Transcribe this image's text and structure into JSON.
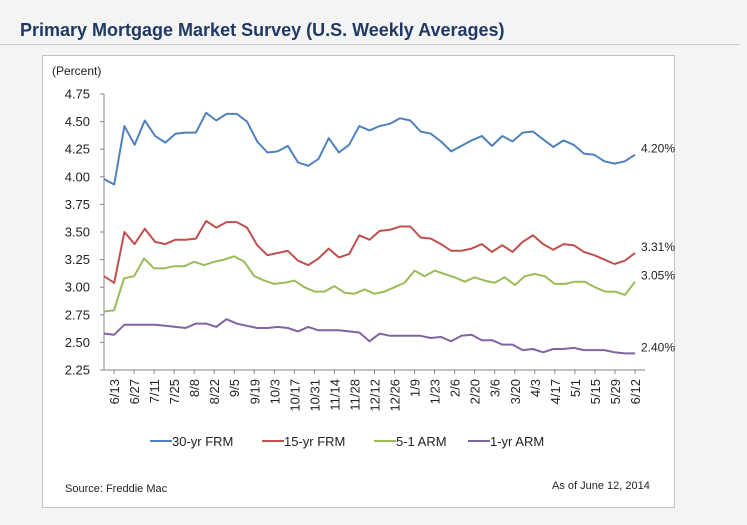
{
  "header": {
    "title": "Primary Mortgage Market Survey (U.S. Weekly Averages)"
  },
  "footer": {
    "source": "Source: Freddie Mac",
    "as_of": "As of June 12, 2014"
  },
  "colors": {
    "title": "#1f3864",
    "series": [
      "#4f81bd",
      "#c0504d",
      "#9bbb59",
      "#8064a2"
    ]
  },
  "chart_data": {
    "type": "line",
    "ylabel": "(Percent)",
    "ylim": [
      2.25,
      4.75
    ],
    "yticks": [
      "4.75",
      "4.50",
      "4.25",
      "4.00",
      "3.75",
      "3.50",
      "3.25",
      "3.00",
      "2.75",
      "2.50",
      "2.25"
    ],
    "legend_position": "bottom",
    "x_tick_labels": [
      "6/13",
      "6/27",
      "7/11",
      "7/25",
      "8/8",
      "8/22",
      "9/5",
      "9/19",
      "10/3",
      "10/17",
      "10/31",
      "11/14",
      "11/28",
      "12/12",
      "12/26",
      "1/9",
      "1/23",
      "2/6",
      "2/20",
      "3/6",
      "3/20",
      "4/3",
      "4/17",
      "5/1",
      "5/15",
      "5/29",
      "6/12"
    ],
    "series": [
      {
        "name": "30-yr FRM",
        "end_label": "4.20%",
        "values": [
          3.98,
          3.93,
          4.46,
          4.29,
          4.51,
          4.37,
          4.31,
          4.39,
          4.4,
          4.4,
          4.58,
          4.51,
          4.57,
          4.57,
          4.5,
          4.32,
          4.22,
          4.23,
          4.28,
          4.13,
          4.1,
          4.16,
          4.35,
          4.22,
          4.29,
          4.46,
          4.42,
          4.46,
          4.48,
          4.53,
          4.51,
          4.41,
          4.39,
          4.32,
          4.23,
          4.28,
          4.33,
          4.37,
          4.28,
          4.37,
          4.32,
          4.4,
          4.41,
          4.34,
          4.27,
          4.33,
          4.29,
          4.21,
          4.2,
          4.14,
          4.12,
          4.14,
          4.2
        ]
      },
      {
        "name": "15-yr FRM",
        "end_label": "3.31%",
        "values": [
          3.1,
          3.04,
          3.5,
          3.39,
          3.53,
          3.41,
          3.39,
          3.43,
          3.43,
          3.44,
          3.6,
          3.54,
          3.59,
          3.59,
          3.54,
          3.38,
          3.29,
          3.31,
          3.33,
          3.24,
          3.2,
          3.26,
          3.35,
          3.27,
          3.3,
          3.47,
          3.43,
          3.51,
          3.52,
          3.55,
          3.55,
          3.45,
          3.44,
          3.39,
          3.33,
          3.33,
          3.35,
          3.39,
          3.32,
          3.38,
          3.32,
          3.41,
          3.47,
          3.39,
          3.34,
          3.39,
          3.38,
          3.32,
          3.29,
          3.25,
          3.21,
          3.24,
          3.31
        ]
      },
      {
        "name": "5-1 ARM",
        "end_label": "3.05%",
        "values": [
          2.78,
          2.79,
          3.08,
          3.1,
          3.26,
          3.17,
          3.17,
          3.19,
          3.19,
          3.23,
          3.2,
          3.23,
          3.25,
          3.28,
          3.23,
          3.1,
          3.06,
          3.03,
          3.04,
          3.06,
          3.0,
          2.96,
          2.96,
          3.01,
          2.95,
          2.94,
          2.98,
          2.94,
          2.96,
          3.0,
          3.04,
          3.15,
          3.1,
          3.15,
          3.12,
          3.09,
          3.05,
          3.09,
          3.06,
          3.04,
          3.09,
          3.02,
          3.1,
          3.12,
          3.1,
          3.03,
          3.03,
          3.05,
          3.05,
          3.0,
          2.96,
          2.96,
          2.93,
          3.05
        ]
      },
      {
        "name": "1-yr ARM",
        "end_label": "2.40%",
        "values": [
          2.58,
          2.57,
          2.66,
          2.66,
          2.66,
          2.66,
          2.65,
          2.64,
          2.63,
          2.67,
          2.67,
          2.64,
          2.71,
          2.67,
          2.65,
          2.63,
          2.63,
          2.64,
          2.63,
          2.6,
          2.64,
          2.61,
          2.61,
          2.61,
          2.6,
          2.59,
          2.51,
          2.58,
          2.56,
          2.56,
          2.56,
          2.56,
          2.54,
          2.55,
          2.51,
          2.56,
          2.57,
          2.52,
          2.52,
          2.48,
          2.48,
          2.43,
          2.44,
          2.41,
          2.44,
          2.44,
          2.45,
          2.43,
          2.43,
          2.43,
          2.41,
          2.4,
          2.4
        ]
      }
    ]
  }
}
